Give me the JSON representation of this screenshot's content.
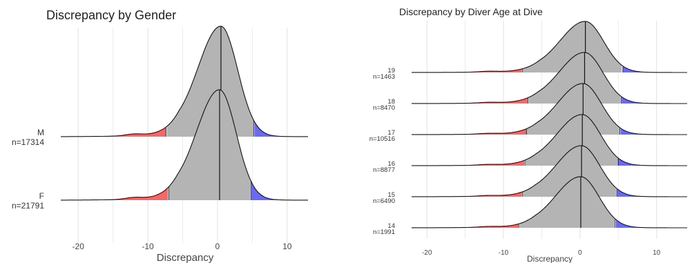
{
  "chart_data": [
    {
      "type": "ridgeline",
      "title": "Discrepancy by Gender",
      "xlabel": "Discrepancy",
      "ylabel": "",
      "xlim": [
        -22.5,
        13
      ],
      "x_ticks": [
        -20,
        -10,
        0,
        10
      ],
      "x_tick_labels": [
        "-20",
        "-10",
        "0",
        "10"
      ],
      "grid": "vertical",
      "median_line": true,
      "tail_colors": {
        "low": "#f06a6a",
        "high": "#6a6aee",
        "body": "#b4b4b4"
      },
      "groups": [
        {
          "label": "M",
          "n_label": "n=17314",
          "median": 0.5,
          "low_cut": -7.4,
          "high_cut": 5.2
        },
        {
          "label": "F",
          "n_label": "n=21791",
          "median": 0.3,
          "low_cut": -7.0,
          "high_cut": 4.8
        }
      ]
    },
    {
      "type": "ridgeline",
      "title": "Discrepancy by Diver Age at Dive",
      "xlabel": "Discrepancy",
      "ylabel": "",
      "xlim": [
        -22,
        14
      ],
      "x_ticks": [
        -20,
        -10,
        0,
        10
      ],
      "x_tick_labels": [
        "-20",
        "-10",
        "0",
        "10"
      ],
      "grid": "vertical",
      "median_line": true,
      "tail_colors": {
        "low": "#f06a6a",
        "high": "#6a6aee",
        "body": "#b4b4b4"
      },
      "groups": [
        {
          "label": "19",
          "n_label": "n=1463",
          "median": 0.7,
          "low_cut": -7.5,
          "high_cut": 5.6
        },
        {
          "label": "18",
          "n_label": "n=8470",
          "median": 0.6,
          "low_cut": -6.8,
          "high_cut": 5.4
        },
        {
          "label": "17",
          "n_label": "n=10516",
          "median": 0.4,
          "low_cut": -7.0,
          "high_cut": 5.2
        },
        {
          "label": "16",
          "n_label": "n=8877",
          "median": 0.3,
          "low_cut": -7.2,
          "high_cut": 5.0
        },
        {
          "label": "15",
          "n_label": "n=6490",
          "median": 0.2,
          "low_cut": -7.5,
          "high_cut": 4.8
        },
        {
          "label": "14",
          "n_label": "n=1991",
          "median": 0.1,
          "low_cut": -8.0,
          "high_cut": 4.6
        }
      ]
    }
  ]
}
